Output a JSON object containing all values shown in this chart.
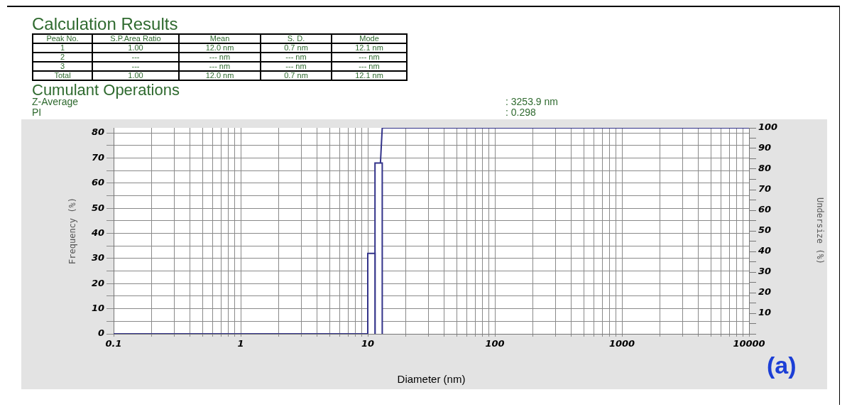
{
  "chart_data": {
    "type": "histogram",
    "title": "Calculation Results",
    "subtitle": "Cumulant Operations",
    "annotations": [
      "Peak No.",
      "S.P.Area Ratio",
      "Mean",
      "S. D.",
      "Mode",
      "1",
      "1.00",
      "12.0 nm",
      "0.7 nm",
      "12.1 nm",
      "2",
      "---",
      "--- nm",
      "--- nm",
      "--- nm",
      "3",
      "---",
      "--- nm",
      "--- nm",
      "--- nm",
      "Total",
      "1.00",
      "12.0 nm",
      "0.7 nm",
      "12.1 nm",
      "Z-Average",
      ": 3253.9 nm",
      "PI",
      ": 0.298",
      "(a)"
    ],
    "xlabel": "Diameter (nm)",
    "ylabel": "Frequency (%)",
    "y2label": "Undersize (%)",
    "log": "x",
    "grid": true,
    "legend": false,
    "xlim": [
      0.1,
      10000
    ],
    "xticks": [
      0.1,
      {
        "value": 0.2,
        "label": null
      },
      {
        "value": 0.3,
        "label": null
      },
      {
        "value": 0.4,
        "label": null
      },
      {
        "value": 0.5,
        "label": null
      },
      {
        "value": 0.6,
        "label": null
      },
      {
        "value": 0.7,
        "label": null
      },
      {
        "value": 0.8,
        "label": null
      },
      {
        "value": 0.9,
        "label": null
      },
      1,
      {
        "value": 2,
        "label": null
      },
      {
        "value": 3,
        "label": null
      },
      {
        "value": 4,
        "label": null
      },
      {
        "value": 5,
        "label": null
      },
      {
        "value": 6,
        "label": null
      },
      {
        "value": 7,
        "label": null
      },
      {
        "value": 8,
        "label": null
      },
      {
        "value": 9,
        "label": null
      },
      10,
      {
        "value": 20,
        "label": null
      },
      {
        "value": 30,
        "label": null
      },
      {
        "value": 40,
        "label": null
      },
      {
        "value": 50,
        "label": null
      },
      {
        "value": 60,
        "label": null
      },
      {
        "value": 70,
        "label": null
      },
      {
        "value": 80,
        "label": null
      },
      {
        "value": 90,
        "label": null
      },
      100,
      {
        "value": 200,
        "label": null
      },
      {
        "value": 300,
        "label": null
      },
      {
        "value": 400,
        "label": null
      },
      {
        "value": 500,
        "label": null
      },
      {
        "value": 600,
        "label": null
      },
      {
        "value": 700,
        "label": null
      },
      {
        "value": 800,
        "label": null
      },
      {
        "value": 900,
        "label": null
      },
      1000,
      {
        "value": 2000,
        "label": null
      },
      {
        "value": 3000,
        "label": null
      },
      {
        "value": 4000,
        "label": null
      },
      {
        "value": 5000,
        "label": null
      },
      {
        "value": 6000,
        "label": null
      },
      {
        "value": 7000,
        "label": null
      },
      {
        "value": 8000,
        "label": null
      },
      {
        "value": 9000,
        "label": null
      },
      10000
    ],
    "ylim": [
      0,
      82
    ],
    "yticks": [
      0,
      {
        "value": 5,
        "label": null
      },
      10,
      {
        "value": 15,
        "label": null
      },
      20,
      {
        "value": 25,
        "label": null
      },
      30,
      {
        "value": 35,
        "label": null
      },
      40,
      {
        "value": 45,
        "label": null
      },
      50,
      {
        "value": 55,
        "label": null
      },
      60,
      {
        "value": 65,
        "label": null
      },
      70,
      {
        "value": 75,
        "label": null
      },
      80
    ],
    "y2lim": [
      0,
      100
    ],
    "y2ticks": [
      {
        "value": 0,
        "label": null
      },
      {
        "value": 5,
        "label": null
      },
      10,
      {
        "value": 15,
        "label": null
      },
      20,
      {
        "value": 25,
        "label": null
      },
      30,
      {
        "value": 35,
        "label": null
      },
      40,
      {
        "value": 45,
        "label": null
      },
      50,
      {
        "value": 55,
        "label": null
      },
      60,
      {
        "value": 65,
        "label": null
      },
      70,
      {
        "value": 75,
        "label": null
      },
      80,
      {
        "value": 85,
        "label": null
      },
      90,
      {
        "value": 95,
        "label": null
      },
      100
    ],
    "series": [
      {
        "type": "histogram",
        "color": "#33338a",
        "bins": [
          10,
          11.4,
          13.0
        ],
        "values": [
          32,
          68
        ]
      },
      {
        "type": "line",
        "axis": "y2",
        "color": "#33338a",
        "x": [
          0.1,
          10,
          11.4,
          13.0,
          10000
        ],
        "values": [
          0,
          0,
          32,
          100,
          100
        ]
      }
    ]
  }
}
